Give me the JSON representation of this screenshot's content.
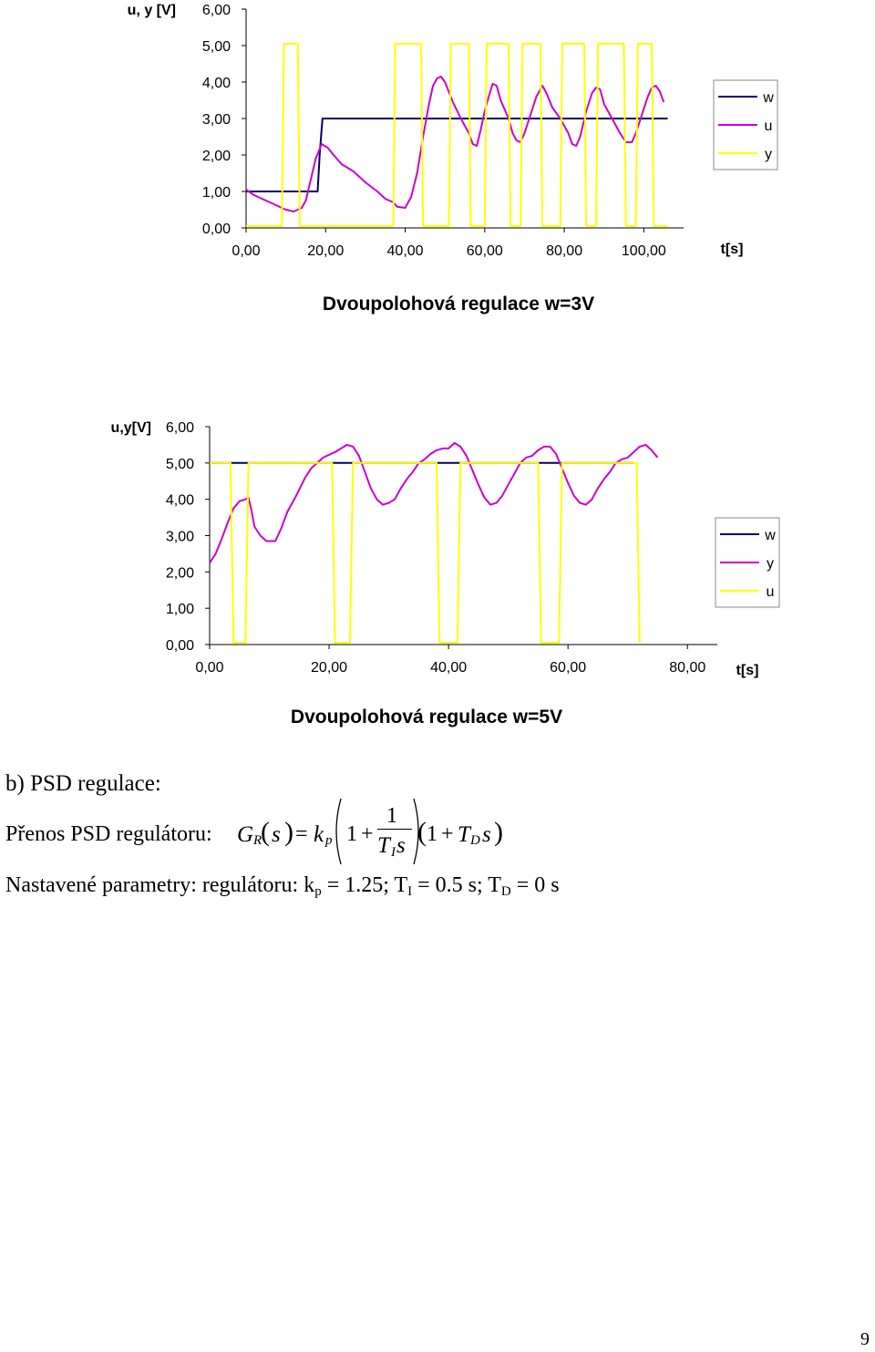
{
  "chart_data": [
    {
      "type": "line",
      "title": "Dvoupolohová regulace w=3V",
      "ylabel": "u, y [V]",
      "xlabel": "t[s]",
      "x_ticks": [
        "0,00",
        "20,00",
        "40,00",
        "60,00",
        "80,00",
        "100,00"
      ],
      "y_ticks": [
        "0,00",
        "1,00",
        "2,00",
        "3,00",
        "4,00",
        "5,00",
        "6,00"
      ],
      "xlim": [
        0,
        110
      ],
      "ylim": [
        0,
        6
      ],
      "legend": "right",
      "series": [
        {
          "name": "w",
          "color": "#000066",
          "points": [
            [
              0,
              1
            ],
            [
              18,
              1
            ],
            [
              18.5,
              2
            ],
            [
              19.2,
              3
            ],
            [
              106,
              3
            ]
          ]
        },
        {
          "name": "u",
          "color": "#cc00cc",
          "points": [
            [
              0,
              1.05
            ],
            [
              2,
              0.9
            ],
            [
              5,
              0.75
            ],
            [
              8,
              0.6
            ],
            [
              10,
              0.5
            ],
            [
              12,
              0.45
            ],
            [
              14,
              0.55
            ],
            [
              15,
              0.75
            ],
            [
              16,
              1.2
            ],
            [
              17.5,
              1.9
            ],
            [
              19,
              2.3
            ],
            [
              20.5,
              2.2
            ],
            [
              22,
              2.0
            ],
            [
              24,
              1.75
            ],
            [
              27,
              1.55
            ],
            [
              30,
              1.25
            ],
            [
              33,
              1.0
            ],
            [
              35,
              0.8
            ],
            [
              37,
              0.7
            ],
            [
              38,
              0.58
            ],
            [
              40,
              0.55
            ],
            [
              41.5,
              0.85
            ],
            [
              43,
              1.5
            ],
            [
              44.5,
              2.5
            ],
            [
              46,
              3.4
            ],
            [
              47,
              3.9
            ],
            [
              48,
              4.1
            ],
            [
              49,
              4.15
            ],
            [
              50,
              4.0
            ],
            [
              52,
              3.45
            ],
            [
              54,
              3.0
            ],
            [
              56,
              2.6
            ],
            [
              57,
              2.3
            ],
            [
              58,
              2.25
            ],
            [
              59,
              2.7
            ],
            [
              60,
              3.2
            ],
            [
              61,
              3.6
            ],
            [
              62,
              3.95
            ],
            [
              63,
              3.9
            ],
            [
              64,
              3.5
            ],
            [
              66,
              3.0
            ],
            [
              67,
              2.6
            ],
            [
              68,
              2.4
            ],
            [
              69,
              2.35
            ],
            [
              70,
              2.6
            ],
            [
              71.5,
              3.1
            ],
            [
              73,
              3.6
            ],
            [
              74.5,
              3.9
            ],
            [
              75.5,
              3.7
            ],
            [
              77,
              3.3
            ],
            [
              79,
              3.0
            ],
            [
              81,
              2.6
            ],
            [
              82,
              2.3
            ],
            [
              83,
              2.25
            ],
            [
              84,
              2.5
            ],
            [
              85.5,
              3.2
            ],
            [
              87,
              3.7
            ],
            [
              88,
              3.85
            ],
            [
              89,
              3.8
            ],
            [
              90,
              3.4
            ],
            [
              92,
              3.0
            ],
            [
              94,
              2.6
            ],
            [
              95.5,
              2.35
            ],
            [
              97,
              2.35
            ],
            [
              98,
              2.6
            ],
            [
              99.5,
              3.1
            ],
            [
              101,
              3.6
            ],
            [
              102,
              3.85
            ],
            [
              103,
              3.9
            ],
            [
              104,
              3.75
            ],
            [
              105,
              3.45
            ]
          ]
        },
        {
          "name": "y",
          "color": "#ffff00",
          "points": [
            [
              0,
              0.05
            ],
            [
              9,
              0.05
            ],
            [
              9.5,
              5.05
            ],
            [
              13,
              5.05
            ],
            [
              13.5,
              0.05
            ],
            [
              37,
              0.05
            ],
            [
              37.5,
              5.05
            ],
            [
              44,
              5.05
            ],
            [
              44.5,
              0.05
            ],
            [
              51,
              0.05
            ],
            [
              51.5,
              5.05
            ],
            [
              56,
              5.05
            ],
            [
              56.5,
              0.05
            ],
            [
              60,
              0.05
            ],
            [
              60.5,
              5.05
            ],
            [
              66,
              5.05
            ],
            [
              66.5,
              0.05
            ],
            [
              69,
              0.05
            ],
            [
              69.5,
              5.05
            ],
            [
              74,
              5.05
            ],
            [
              74.5,
              0.05
            ],
            [
              79,
              0.05
            ],
            [
              79.5,
              5.05
            ],
            [
              85,
              5.05
            ],
            [
              85.5,
              0.05
            ],
            [
              88,
              0.05
            ],
            [
              88.5,
              5.05
            ],
            [
              95,
              5.05
            ],
            [
              95.5,
              0.05
            ],
            [
              98,
              0.05
            ],
            [
              98.5,
              5.05
            ],
            [
              102,
              5.05
            ],
            [
              102.5,
              0.05
            ],
            [
              106,
              0.05
            ]
          ]
        }
      ]
    },
    {
      "type": "line",
      "title": "Dvoupolohová regulace w=5V",
      "ylabel": "u,y[V]",
      "xlabel": "t[s]",
      "x_ticks": [
        "0,00",
        "20,00",
        "40,00",
        "60,00",
        "80,00"
      ],
      "y_ticks": [
        "0,00",
        "1,00",
        "2,00",
        "3,00",
        "4,00",
        "5,00",
        "6,00"
      ],
      "xlim": [
        0,
        85
      ],
      "ylim": [
        0,
        6
      ],
      "legend": "right",
      "series": [
        {
          "name": "w",
          "color": "#000066",
          "points": [
            [
              0,
              5
            ],
            [
              71,
              5
            ]
          ]
        },
        {
          "name": "y",
          "color": "#cc00cc",
          "points": [
            [
              0,
              2.25
            ],
            [
              1,
              2.5
            ],
            [
              2,
              2.9
            ],
            [
              3,
              3.35
            ],
            [
              4,
              3.75
            ],
            [
              5,
              3.95
            ],
            [
              6,
              4.0
            ],
            [
              6.5,
              4.05
            ],
            [
              7,
              3.7
            ],
            [
              7.5,
              3.25
            ],
            [
              8.5,
              3.0
            ],
            [
              9.5,
              2.85
            ],
            [
              11,
              2.85
            ],
            [
              12,
              3.2
            ],
            [
              13,
              3.65
            ],
            [
              14.5,
              4.1
            ],
            [
              16,
              4.6
            ],
            [
              17,
              4.85
            ],
            [
              18,
              5.0
            ],
            [
              19,
              5.15
            ],
            [
              21,
              5.3
            ],
            [
              22,
              5.4
            ],
            [
              23,
              5.5
            ],
            [
              24,
              5.45
            ],
            [
              25,
              5.2
            ],
            [
              26,
              4.75
            ],
            [
              27,
              4.3
            ],
            [
              28,
              4.0
            ],
            [
              29,
              3.85
            ],
            [
              30,
              3.9
            ],
            [
              31,
              4.0
            ],
            [
              32,
              4.3
            ],
            [
              33,
              4.55
            ],
            [
              34,
              4.75
            ],
            [
              35,
              5.0
            ],
            [
              36,
              5.1
            ],
            [
              37,
              5.25
            ],
            [
              38,
              5.35
            ],
            [
              39,
              5.4
            ],
            [
              40,
              5.4
            ],
            [
              41,
              5.55
            ],
            [
              42,
              5.45
            ],
            [
              43,
              5.2
            ],
            [
              44,
              4.8
            ],
            [
              45,
              4.4
            ],
            [
              46,
              4.05
            ],
            [
              47,
              3.85
            ],
            [
              48,
              3.9
            ],
            [
              49,
              4.1
            ],
            [
              50,
              4.4
            ],
            [
              51,
              4.7
            ],
            [
              52,
              5.0
            ],
            [
              53,
              5.15
            ],
            [
              54,
              5.2
            ],
            [
              55,
              5.35
            ],
            [
              56,
              5.45
            ],
            [
              57,
              5.45
            ],
            [
              58,
              5.25
            ],
            [
              59,
              4.85
            ],
            [
              60,
              4.45
            ],
            [
              61,
              4.1
            ],
            [
              62,
              3.9
            ],
            [
              63,
              3.85
            ],
            [
              64,
              4.0
            ],
            [
              65,
              4.3
            ],
            [
              66,
              4.55
            ],
            [
              67,
              4.75
            ],
            [
              68,
              5.0
            ],
            [
              69,
              5.1
            ],
            [
              70,
              5.15
            ],
            [
              71,
              5.3
            ],
            [
              72,
              5.45
            ],
            [
              73,
              5.5
            ],
            [
              74,
              5.35
            ],
            [
              75,
              5.15
            ]
          ]
        },
        {
          "name": "u",
          "color": "#ffff00",
          "points": [
            [
              0,
              5.0
            ],
            [
              3.5,
              5.0
            ],
            [
              4,
              0.05
            ],
            [
              6,
              0.05
            ],
            [
              6.5,
              5.0
            ],
            [
              20.5,
              5.0
            ],
            [
              21,
              0.05
            ],
            [
              23.5,
              0.05
            ],
            [
              24,
              5.0
            ],
            [
              38,
              5.0
            ],
            [
              38.5,
              0.05
            ],
            [
              41.5,
              0.05
            ],
            [
              42,
              5.0
            ],
            [
              55,
              5.0
            ],
            [
              55.5,
              0.05
            ],
            [
              58.5,
              0.05
            ],
            [
              59,
              5.0
            ],
            [
              71.5,
              5.0
            ],
            [
              72,
              0.05
            ]
          ]
        }
      ]
    }
  ],
  "section": {
    "title": "b) PSD regulace:"
  },
  "formula": {
    "label": "Přenos PSD regulátoru:",
    "G": "G",
    "R": "R",
    "s": "s",
    "eq": "=",
    "k": "k",
    "p": "p",
    "one": "1",
    "plus": "+",
    "T": "T",
    "I": "I",
    "D": "D",
    "lp": "(",
    "rp": ")"
  },
  "params": {
    "prefix": "Nastavené parametry: regulátoru: k",
    "kp_sub": "p",
    "kp_val": " = 1.25; T",
    "ti_sub": "I",
    "ti_val": " = 0.5 s; T",
    "td_sub": "D",
    "td_val": " = 0 s"
  },
  "page": {
    "number": "9"
  }
}
